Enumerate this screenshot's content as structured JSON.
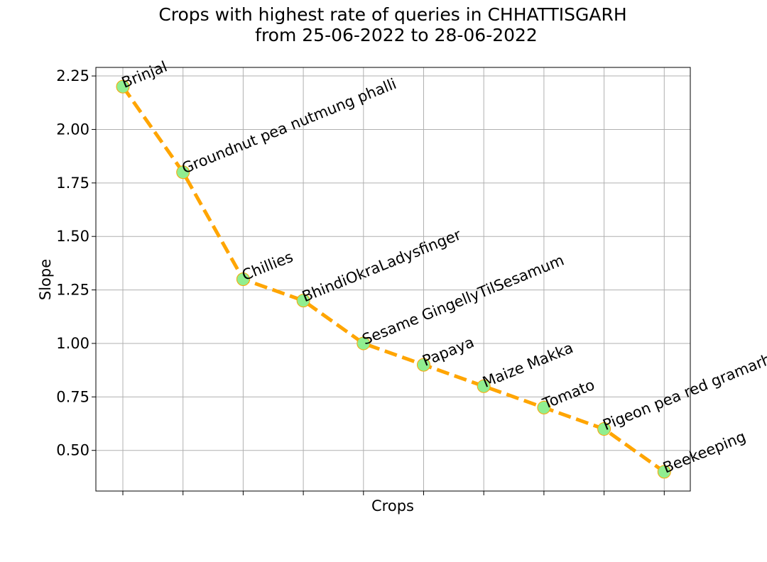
{
  "chart_data": {
    "type": "line",
    "title_line1": "Crops with highest rate of queries in CHHATTISGARH",
    "title_line2": "from 25-06-2022 to 28-06-2022",
    "xlabel": "Crops",
    "ylabel": "Slope",
    "categories": [
      "Brinjal",
      "Groundnut pea nutmung phalli",
      "Chillies",
      "BhindiOkraLadysfinger",
      "Sesame GingellyTilSesamum",
      "Papaya",
      "Maize Makka",
      "Tomato",
      "Pigeon pea red gramarhar",
      "Beekeeping"
    ],
    "values": [
      2.2,
      1.8,
      1.3,
      1.2,
      1.0,
      0.9,
      0.8,
      0.7,
      0.6,
      0.4
    ],
    "ylim": [
      0.31,
      2.29
    ],
    "yticks": [
      "0.50",
      "0.75",
      "1.00",
      "1.25",
      "1.50",
      "1.75",
      "2.00",
      "2.25"
    ],
    "ytick_values": [
      0.5,
      0.75,
      1.0,
      1.25,
      1.5,
      1.75,
      2.0,
      2.25
    ],
    "grid": true,
    "line_color": "#FFA500",
    "line_style": "dashed",
    "marker_color": "#90EE90",
    "marker_edge_color": "#FFA500"
  }
}
